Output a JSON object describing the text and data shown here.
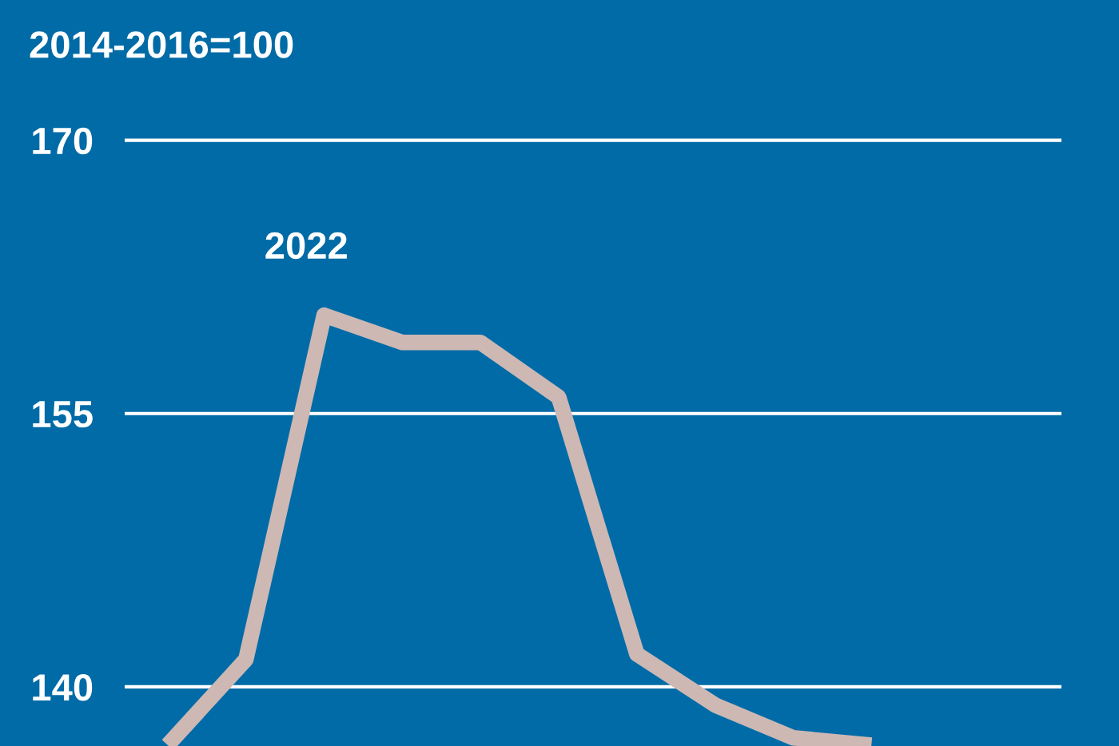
{
  "chart_data": {
    "type": "line",
    "title": "2014-2016=100",
    "categories": [
      null,
      null,
      null,
      null,
      null,
      null,
      null,
      null,
      null,
      null
    ],
    "series": [
      {
        "color": "#cdb8b4",
        "values": [
          136.8,
          141.5,
          160.4,
          158.9,
          158.9,
          155.9,
          141.8,
          139.0,
          137.2,
          136.8
        ]
      }
    ],
    "annotations": [
      "2022"
    ],
    "ylim": [
      136.75,
      177.7
    ],
    "yticks": [
      140,
      155,
      170
    ],
    "grid": "y",
    "tick_labels": "y",
    "marker": "none",
    "line_style": "solid",
    "legend": false
  }
}
